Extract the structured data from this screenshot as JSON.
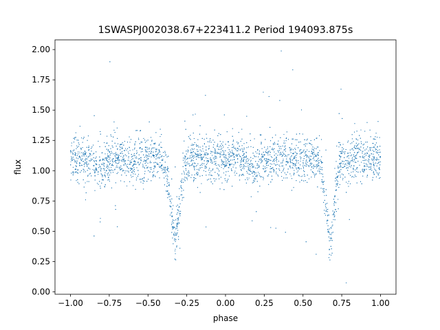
{
  "chart_data": {
    "type": "scatter",
    "title": "1SWASPJ002038.67+223411.2 Period 194093.875s",
    "xlabel": "phase",
    "ylabel": "flux",
    "xlim": [
      -1.1,
      1.1
    ],
    "ylim": [
      -0.02,
      2.08
    ],
    "x_ticks": [
      -1.0,
      -0.75,
      -0.5,
      -0.25,
      0.0,
      0.25,
      0.5,
      0.75,
      1.0
    ],
    "x_tick_labels": [
      "−1.00",
      "−0.75",
      "−0.50",
      "−0.25",
      "0.00",
      "0.25",
      "0.50",
      "0.75",
      "1.00"
    ],
    "y_ticks": [
      0.0,
      0.25,
      0.5,
      0.75,
      1.0,
      1.25,
      1.5,
      1.75,
      2.0
    ],
    "y_tick_labels": [
      "0.00",
      "0.25",
      "0.50",
      "0.75",
      "1.00",
      "1.25",
      "1.50",
      "1.75",
      "2.00"
    ],
    "grid": false,
    "legend": "none",
    "series_color": "#1f77b4",
    "light_curve_model": {
      "phase_range": [
        -1.0,
        1.0
      ],
      "baseline_flux": 1.1,
      "secondary_dip_flux": 1.02,
      "secondary_dip_phases": [
        -0.82,
        0.18
      ],
      "primary_eclipse_phases": [
        -0.325,
        0.675
      ],
      "primary_eclipse_min_flux": 0.45,
      "primary_eclipse_half_width": 0.04,
      "scatter_sigma": 0.09,
      "point_count": 9000
    }
  }
}
